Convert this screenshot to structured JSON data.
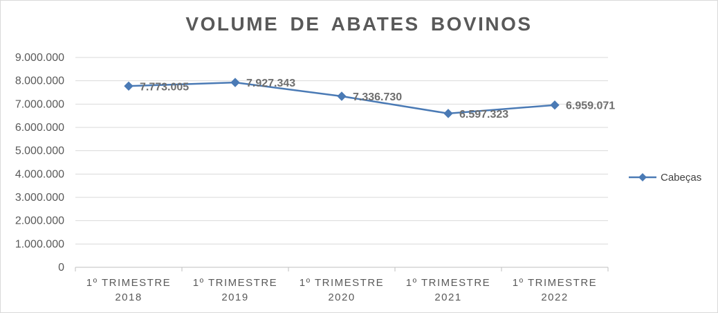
{
  "chart_data": {
    "type": "line",
    "title": "VOLUME  DE  ABATES  BOVINOS",
    "categories": [
      [
        "1º TRIMESTRE",
        "2018"
      ],
      [
        "1º TRIMESTRE",
        "2019"
      ],
      [
        "1º TRIMESTRE",
        "2020"
      ],
      [
        "1º TRIMESTRE",
        "2021"
      ],
      [
        "1º TRIMESTRE",
        "2022"
      ]
    ],
    "series": [
      {
        "name": "Cabeças",
        "values": [
          7773005,
          7927343,
          7336730,
          6597323,
          6959071
        ],
        "data_labels": [
          "7.773.005",
          "7.927.343",
          "7.336.730",
          "6.597.323",
          "6.959.071"
        ],
        "color": "#4a7ab5",
        "marker": "diamond"
      }
    ],
    "ylim": [
      0,
      9000000
    ],
    "yticks": [
      0,
      1000000,
      2000000,
      3000000,
      4000000,
      5000000,
      6000000,
      7000000,
      8000000,
      9000000
    ],
    "ytick_labels": [
      "0",
      "1.000.000",
      "2.000.000",
      "3.000.000",
      "4.000.000",
      "5.000.000",
      "6.000.000",
      "7.000.000",
      "8.000.000",
      "9.000.000"
    ],
    "xlabel": "",
    "ylabel": "",
    "grid": true,
    "legend": "right",
    "colors": {
      "gridline": "#d9d9d9",
      "axis": "#bfbfbf",
      "text": "#595959"
    }
  }
}
